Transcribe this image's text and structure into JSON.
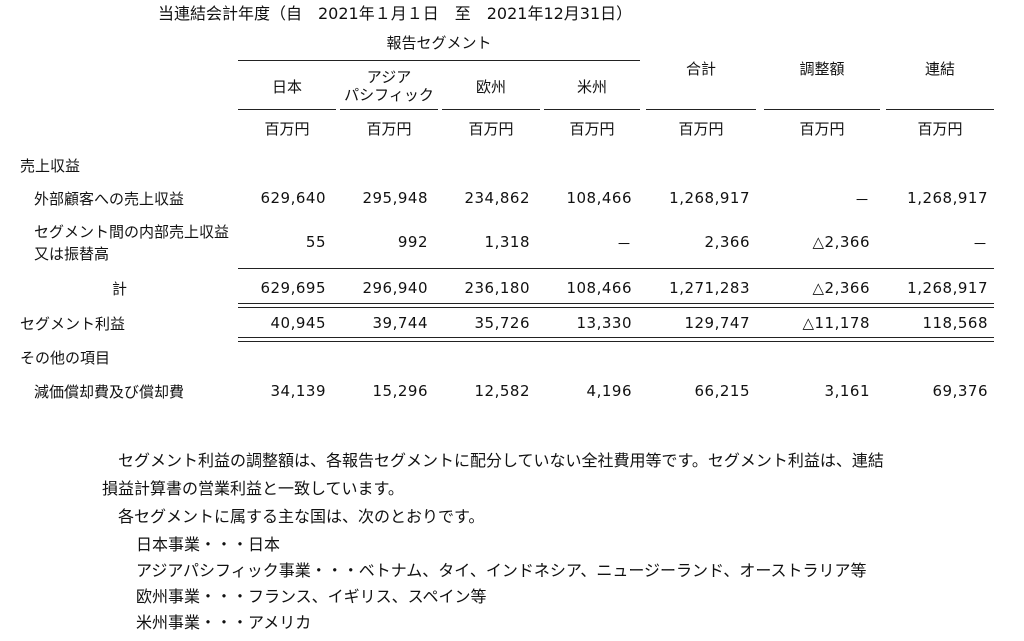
{
  "period_title": "当連結会計年度（自　2021年１月１日　至　2021年12月31日）",
  "header": {
    "reporting_segments": "報告セグメント",
    "columns": [
      "日本",
      "アジア\nパシフィック",
      "欧州",
      "米州",
      "合計",
      "調整額",
      "連結"
    ],
    "unit": "百万円"
  },
  "rows": [
    {
      "label": "売上収益",
      "values": [
        "",
        "",
        "",
        "",
        "",
        "",
        ""
      ]
    },
    {
      "label": "外部顧客への売上収益",
      "values": [
        "629,640",
        "295,948",
        "234,862",
        "108,466",
        "1,268,917",
        "－",
        "1,268,917"
      ]
    },
    {
      "label": "セグメント間の内部売上収益\n又は振替高",
      "values": [
        "55",
        "992",
        "1,318",
        "－",
        "2,366",
        "△2,366",
        "－"
      ]
    },
    {
      "label": "計",
      "values": [
        "629,695",
        "296,940",
        "236,180",
        "108,466",
        "1,271,283",
        "△2,366",
        "1,268,917"
      ]
    },
    {
      "label": "セグメント利益",
      "values": [
        "40,945",
        "39,744",
        "35,726",
        "13,330",
        "129,747",
        "△11,178",
        "118,568"
      ]
    },
    {
      "label": "その他の項目",
      "values": [
        "",
        "",
        "",
        "",
        "",
        "",
        ""
      ]
    },
    {
      "label": "減価償却費及び償却費",
      "values": [
        "34,139",
        "15,296",
        "12,582",
        "4,196",
        "66,215",
        "3,161",
        "69,376"
      ]
    }
  ],
  "notes": {
    "adjustment_line1": "セグメント利益の調整額は、各報告セグメントに配分していない全社費用等です。セグメント利益は、連結",
    "adjustment_line2": "損益計算書の営業利益と一致しています。",
    "countries_intro": "各セグメントに属する主な国は、次のとおりです。",
    "countries": [
      "日本事業・・・日本",
      "アジアパシフィック事業・・・ベトナム、タイ、インドネシア、ニュージーランド、オーストラリア等",
      "欧州事業・・・フランス、イギリス、スペイン等",
      "米州事業・・・アメリカ"
    ]
  }
}
